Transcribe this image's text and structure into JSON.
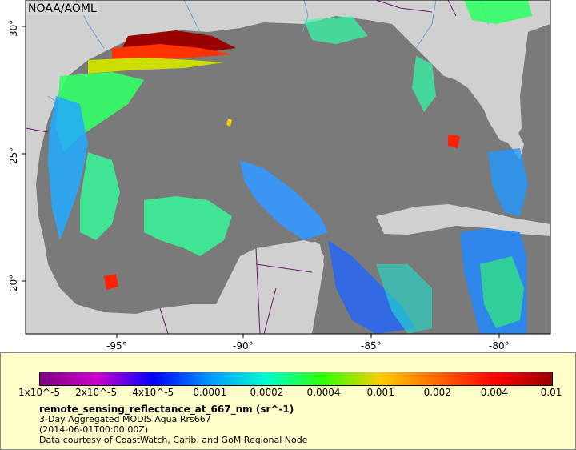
{
  "credit": "NOAA/AOML",
  "x_ticks": [
    "-95°",
    "-90°",
    "-85°",
    "-80°"
  ],
  "y_ticks": [
    "30°",
    "25°",
    "20°"
  ],
  "colors": {
    "ocean": "#7a7a7a",
    "land": "#d0d0d0",
    "rivers": "#6b9fd6",
    "borders": "#6a1a6a",
    "legend_bg": "#ffffcc"
  },
  "colorbar": {
    "stops": [
      "#800080",
      "#cc00cc",
      "#0000ff",
      "#0099ff",
      "#00ffcc",
      "#33ff00",
      "#ffcc00",
      "#ff6600",
      "#ff0000",
      "#990000"
    ],
    "tick_labels": [
      "1x10^-5",
      "2x10^-5",
      "4x10^-5",
      "0.0001",
      "0.0002",
      "0.0004",
      "0.001",
      "0.002",
      "0.004",
      "0.01"
    ]
  },
  "legend": {
    "variable": "remote_sensing_reflectance_at_667_nm (sr^-1)",
    "product": "3-Day Aggregated MODIS Aqua Rrs667",
    "time": "(2014-06-01T00:00:00Z)",
    "courtesy": "Data courtesy of CoastWatch, Carib. and GoM Regional Node"
  }
}
